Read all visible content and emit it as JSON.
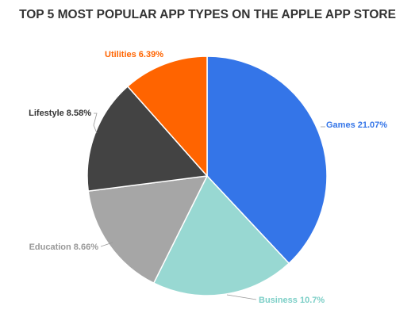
{
  "chart_data": {
    "type": "pie",
    "title": "TOP 5 MOST POPULAR APP TYPES ON THE APPLE APP STORE",
    "unit": "%",
    "slices": [
      {
        "name": "Games",
        "value": 21.07,
        "label": "Games 21.07%",
        "color": "#3475e8"
      },
      {
        "name": "Business",
        "value": 10.7,
        "label": "Business 10.7%",
        "color": "#98d8d2"
      },
      {
        "name": "Education",
        "value": 8.66,
        "label": "Education 8.66%",
        "color": "#a6a6a6"
      },
      {
        "name": "Lifestyle",
        "value": 8.58,
        "label": "Lifestyle 8.58%",
        "color": "#434343"
      },
      {
        "name": "Utilities",
        "value": 6.39,
        "label": "Utilities 6.39%",
        "color": "#ff6400"
      }
    ],
    "label_colors": {
      "Games": "#3475e8",
      "Business": "#7ccfc7",
      "Education": "#999999",
      "Lifestyle": "#333333",
      "Utilities": "#ff6400"
    },
    "start_angle_deg": 0,
    "direction": "clockwise",
    "legend": "none"
  }
}
